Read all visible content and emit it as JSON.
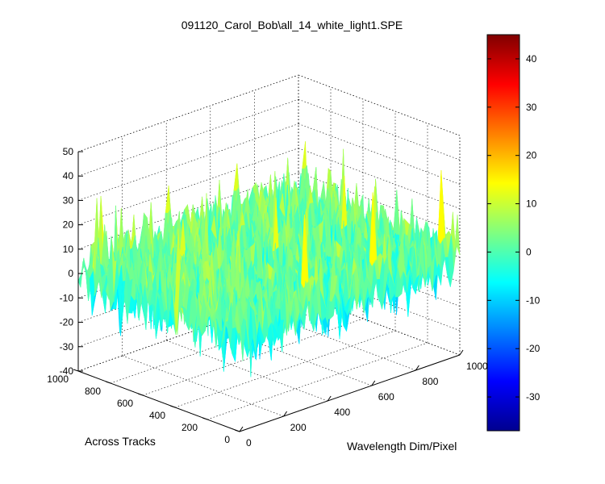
{
  "chart_data": {
    "type": "surface3d",
    "title": "091120_Carol_Bob\\all_14_white_light1.SPE",
    "xlabel": "Wavelength Dim/Pixel",
    "ylabel": "Across Tracks",
    "zlabel": "",
    "xlim": [
      0,
      1000
    ],
    "ylim": [
      0,
      1000
    ],
    "zlim": [
      -40,
      50
    ],
    "x_ticks": [
      0,
      200,
      400,
      600,
      800,
      1000
    ],
    "y_ticks": [
      0,
      200,
      400,
      600,
      800,
      1000
    ],
    "z_ticks": [
      -40,
      -30,
      -20,
      -10,
      0,
      10,
      20,
      30,
      40,
      50
    ],
    "surface": {
      "description_of_values": "noise surface centered near 0, typical range about -35 to 45",
      "mean": 0,
      "min": -37,
      "max": 45
    },
    "colorbar": {
      "colormap": "jet",
      "range": [
        -37,
        45
      ],
      "ticks": [
        -30,
        -20,
        -10,
        0,
        10,
        20,
        30,
        40
      ]
    },
    "grid": true
  }
}
